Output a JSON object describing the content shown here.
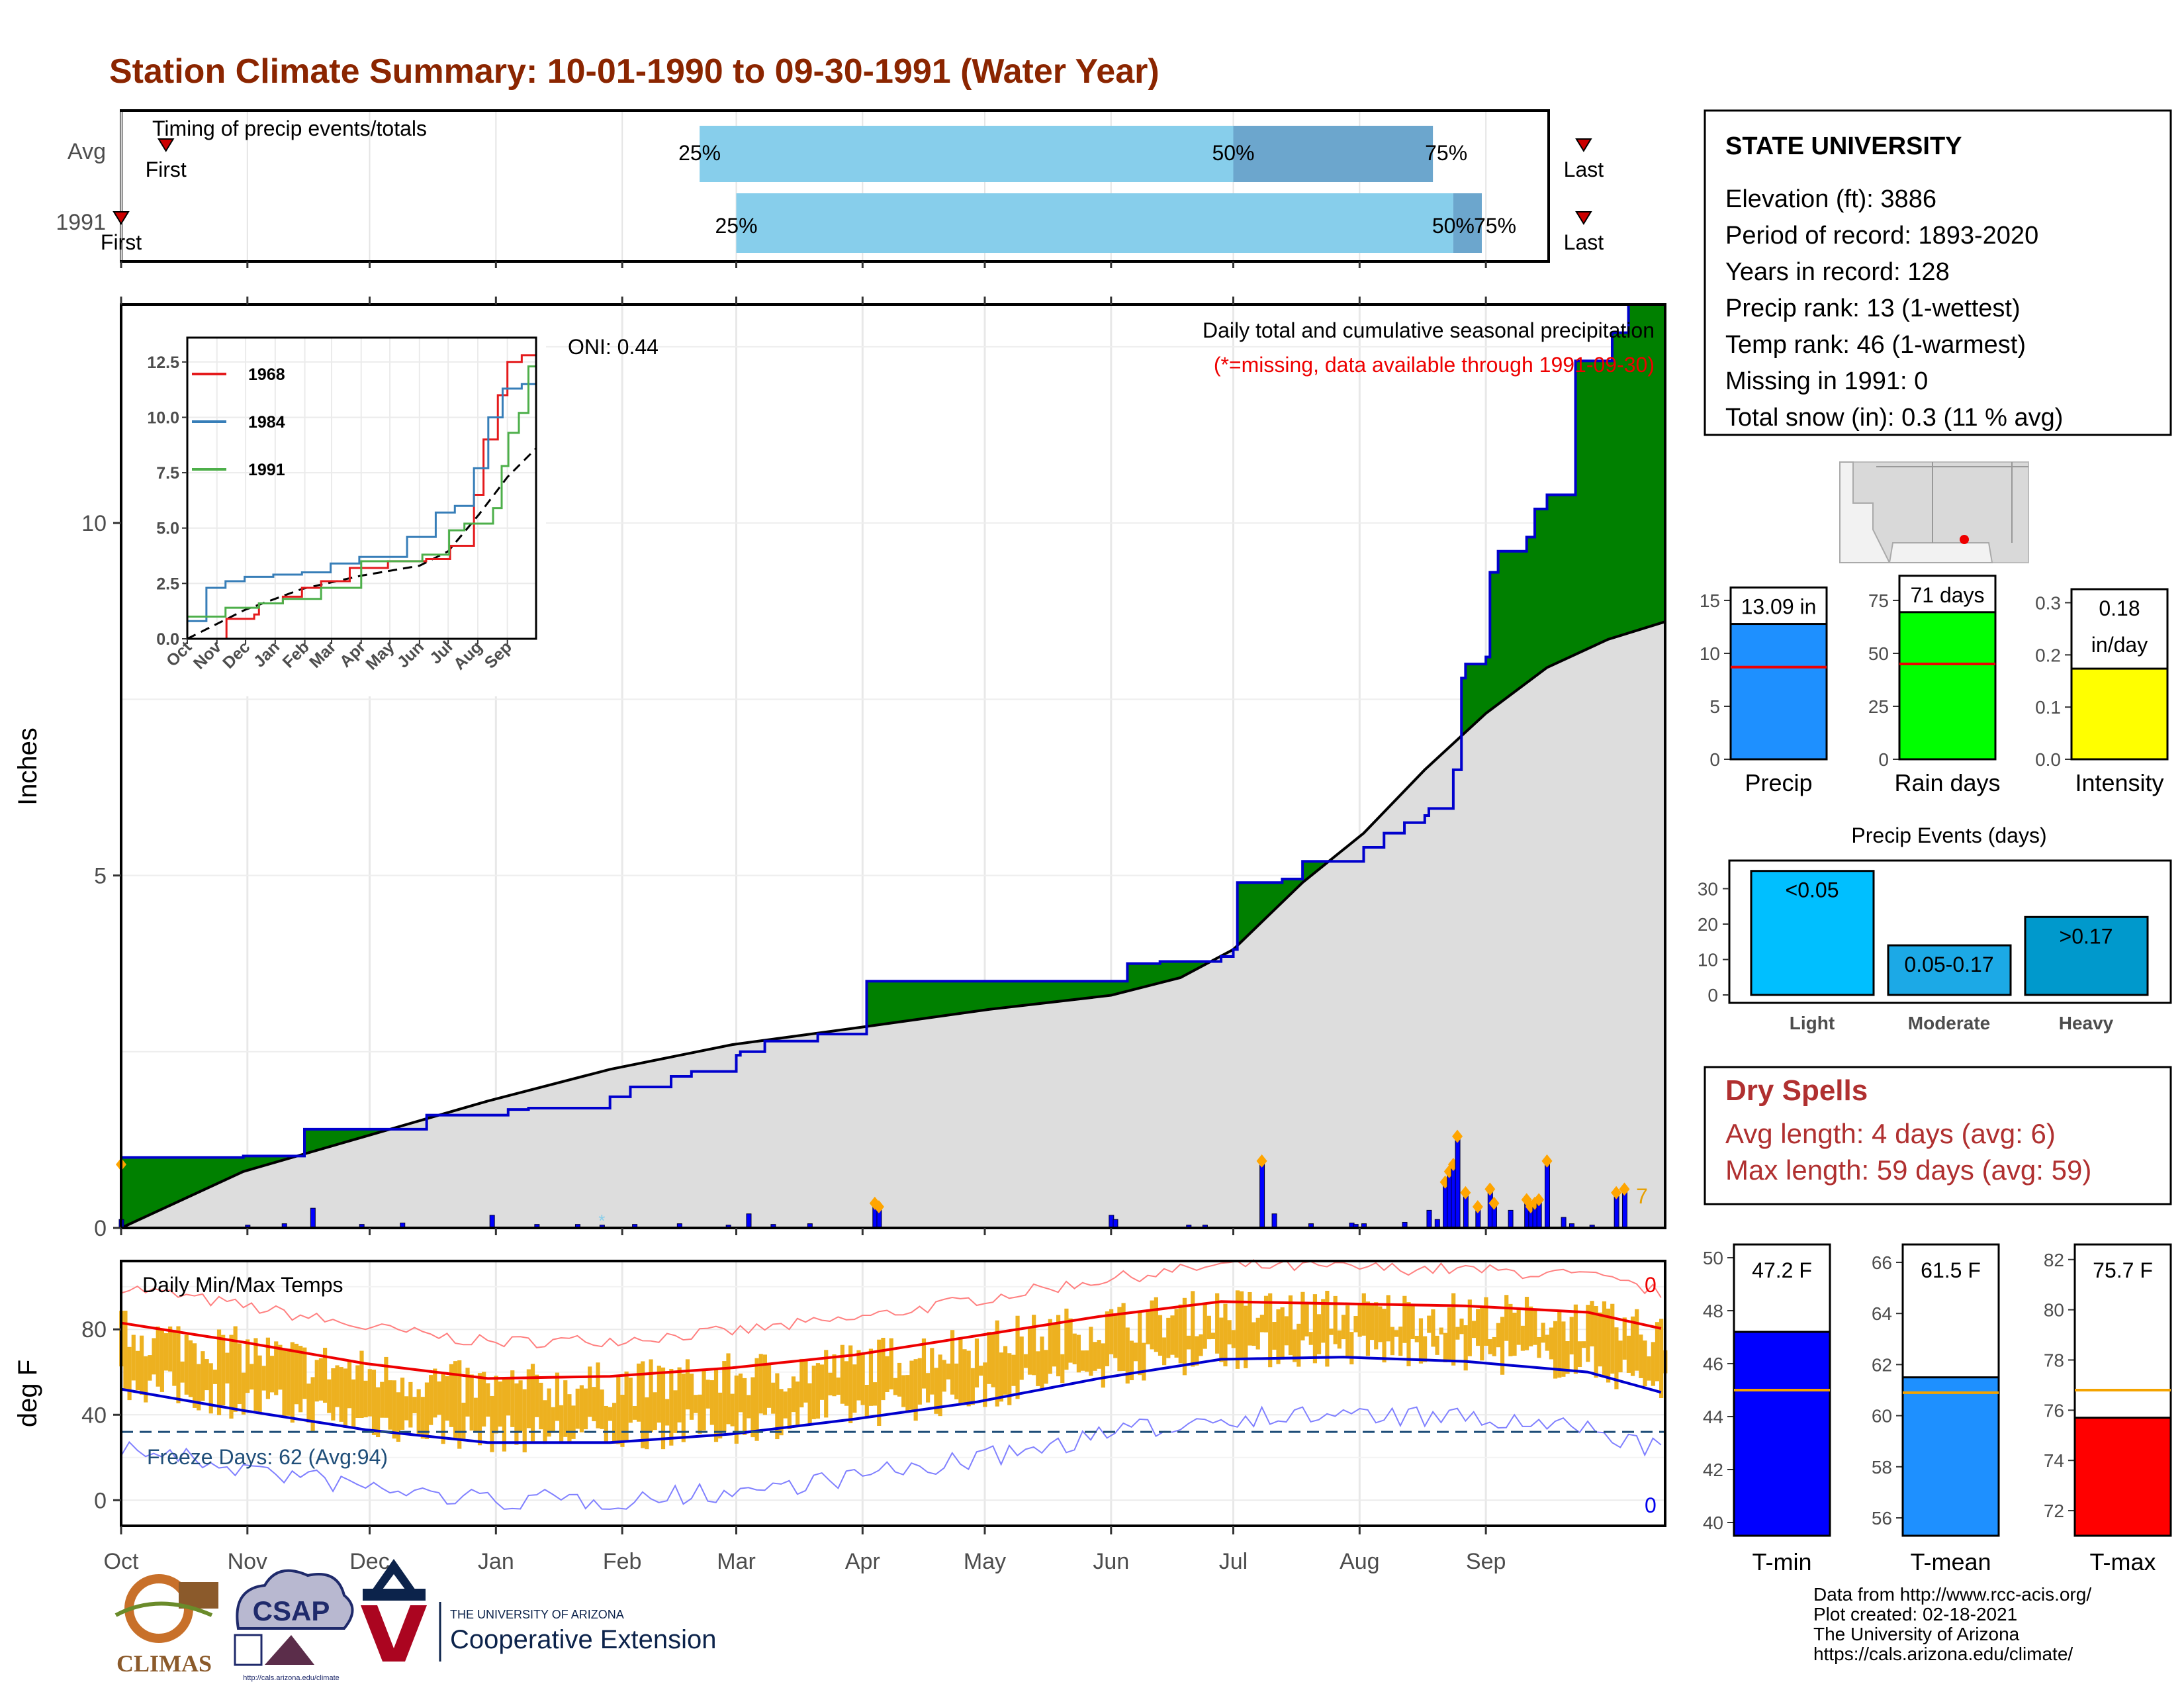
{
  "title": "Station Climate Summary: 10-01-1990 to 09-30-1991 (Water Year)",
  "colors": {
    "title": "#8B2500",
    "precip_fill": "#008000",
    "precip_line": "#0000CD",
    "climo_fill": "#DDDDDD",
    "timing_light": "#87CEEB",
    "timing_dark": "#6CA6CD",
    "temp_bar": "#EDB120",
    "tmax_line": "#EE0000",
    "tmin_line": "#0000CD",
    "dry_text": "#B03030"
  },
  "timing": {
    "label": "Timing of precip events/totals",
    "rows": [
      {
        "name": "Avg",
        "first": 11,
        "p25": 142,
        "p50": 273,
        "p75": 322,
        "last": 359
      },
      {
        "name": "1991",
        "first": 0,
        "p25": 151,
        "p50": 327,
        "p75": 334,
        "last": 359
      }
    ],
    "first_label": "First",
    "last_label": "Last",
    "p25_label": "25%",
    "p50_label": "50%",
    "p75_label": "75%"
  },
  "main": {
    "oni": "ONI: 0.44",
    "subtitle": "Daily total and cumulative seasonal precipitation",
    "missing_note": "(*=missing, data available through 1991-09-30)",
    "ylabel": "Inches",
    "yticks": [
      0,
      5,
      10
    ],
    "count_label": "7"
  },
  "inset": {
    "yticks": [
      "0.0",
      "2.5",
      "5.0",
      "7.5",
      "10.0",
      "12.5"
    ],
    "months": [
      "Oct",
      "Nov",
      "Dec",
      "Jan",
      "Feb",
      "Mar",
      "Apr",
      "May",
      "Jun",
      "Jul",
      "Aug",
      "Sep"
    ],
    "legend": [
      {
        "name": "1968",
        "color": "#E41A1C"
      },
      {
        "name": "1984",
        "color": "#377EB8"
      },
      {
        "name": "1991",
        "color": "#4DAF4A"
      }
    ]
  },
  "temps": {
    "label": "Daily Min/Max Temps",
    "ylabel": "deg F",
    "yticks": [
      0,
      40,
      80
    ],
    "freeze": "Freeze Days: 62 (Avg:94)",
    "count_top": "0",
    "count_bottom": "0"
  },
  "months": [
    "Oct",
    "Nov",
    "Dec",
    "Jan",
    "Feb",
    "Mar",
    "Apr",
    "May",
    "Jun",
    "Jul",
    "Aug",
    "Sep"
  ],
  "station": {
    "name": "STATE UNIVERSITY",
    "lines": [
      "Elevation (ft): 3886",
      "Period of record: 1893-2020",
      "Years in record: 128",
      "Precip rank: 13 (1-wettest)",
      "Temp rank: 46 (1-warmest)",
      "Missing in 1991: 0",
      "Total snow (in): 0.3 (11 % avg)"
    ]
  },
  "small_bars": [
    {
      "name": "Precip",
      "value": 13.09,
      "avg": 8.7,
      "label_lines": [
        "13.09 in"
      ],
      "yticks": [
        "0",
        "5",
        "10",
        "15"
      ],
      "ymax": 17,
      "color": "#1E90FF"
    },
    {
      "name": "Rain days",
      "value": 71,
      "avg": 45,
      "label_lines": [
        "71 days"
      ],
      "yticks": [
        "0",
        "25",
        "50",
        "75"
      ],
      "ymax": 85,
      "color": "#00FF00"
    },
    {
      "name": "Intensity",
      "value": 0.18,
      "avg": 0.19,
      "label_lines": [
        "0.18",
        "in/day"
      ],
      "yticks": [
        "0.0",
        "0.1",
        "0.2",
        "0.3"
      ],
      "ymax": 0.345,
      "color": "#FFFF00"
    }
  ],
  "events": {
    "title": "Precip Events (days)",
    "yticks": [
      "0",
      "10",
      "20",
      "30"
    ],
    "ymax": 37,
    "bars": [
      {
        "name": "Light",
        "value": 35,
        "label": "<0.05",
        "color": "#00BFFF"
      },
      {
        "name": "Moderate",
        "value": 14,
        "label": "0.05-0.17",
        "color": "#1CA9E6"
      },
      {
        "name": "Heavy",
        "value": 22,
        "label": ">0.17",
        "color": "#0099CC"
      }
    ]
  },
  "dry": {
    "title": "Dry Spells",
    "avg": "Avg length: 4 days (avg: 6)",
    "max": "Max length: 59 days (avg: 59)"
  },
  "temp_bars": [
    {
      "name": "T-min",
      "value": 47.2,
      "avg": 45.0,
      "label": "47.2 F",
      "yticks": [
        "40",
        "42",
        "44",
        "46",
        "48",
        "50"
      ],
      "ymin": 39.5,
      "ymax": 50.5,
      "color": "#0000FF"
    },
    {
      "name": "T-mean",
      "value": 61.5,
      "avg": 60.9,
      "label": "61.5 F",
      "yticks": [
        "56",
        "58",
        "60",
        "62",
        "64",
        "66"
      ],
      "ymin": 55.3,
      "ymax": 66.7,
      "color": "#1E90FF"
    },
    {
      "name": "T-max",
      "value": 75.7,
      "avg": 76.8,
      "label": "75.7 F",
      "yticks": [
        "72",
        "74",
        "76",
        "78",
        "80",
        "82"
      ],
      "ymin": 71.0,
      "ymax": 82.6,
      "color": "#FF0000"
    }
  ],
  "credits": [
    "Data from http://www.rcc-acis.org/",
    "Plot created: 02-18-2021",
    "The University of Arizona",
    "https://cals.arizona.edu/climate/"
  ],
  "logos": {
    "climas": "CLIMAS",
    "csap": "CSAP",
    "csap_url": "http://cals.arizona.edu/climate",
    "ua_small": "THE UNIVERSITY OF ARIZONA",
    "ua_big": "Cooperative Extension"
  },
  "chart_data": {
    "type": "area",
    "title": "Daily total and cumulative seasonal precipitation",
    "ylabel": "Inches",
    "ylim": [
      0,
      13.1
    ],
    "x_unit": "day of water year (0 = Oct 1)",
    "cumulative_1991": [
      [
        0,
        1.0
      ],
      [
        30,
        1.02
      ],
      [
        45,
        1.4
      ],
      [
        60,
        1.4
      ],
      [
        75,
        1.6
      ],
      [
        90,
        1.6
      ],
      [
        95,
        1.68
      ],
      [
        100,
        1.7
      ],
      [
        120,
        1.86
      ],
      [
        125,
        2.0
      ],
      [
        135,
        2.15
      ],
      [
        140,
        2.22
      ],
      [
        150,
        2.22
      ],
      [
        151,
        2.45
      ],
      [
        152,
        2.5
      ],
      [
        157,
        2.5
      ],
      [
        158,
        2.65
      ],
      [
        170,
        2.65
      ],
      [
        171,
        2.75
      ],
      [
        175,
        2.75
      ],
      [
        182,
        2.75
      ],
      [
        183,
        3.5
      ],
      [
        190,
        3.5
      ],
      [
        230,
        3.5
      ],
      [
        235,
        3.5
      ],
      [
        246,
        3.5
      ],
      [
        247,
        3.75
      ],
      [
        255,
        3.78
      ],
      [
        270,
        3.85
      ],
      [
        273,
        3.95
      ],
      [
        274,
        4.9
      ],
      [
        285,
        4.95
      ],
      [
        290,
        5.2
      ],
      [
        300,
        5.2
      ],
      [
        305,
        5.4
      ],
      [
        310,
        5.6
      ],
      [
        315,
        5.75
      ],
      [
        320,
        5.85
      ],
      [
        321,
        5.95
      ],
      [
        326,
        5.95
      ],
      [
        327,
        6.5
      ],
      [
        328,
        6.5
      ],
      [
        329,
        7.8
      ],
      [
        330,
        8.0
      ],
      [
        334,
        8.0
      ],
      [
        335,
        8.1
      ],
      [
        336,
        9.3
      ],
      [
        337,
        9.3
      ],
      [
        338,
        9.6
      ],
      [
        340,
        9.6
      ],
      [
        345,
        9.8
      ],
      [
        347,
        10.2
      ],
      [
        350,
        10.4
      ],
      [
        355,
        10.4
      ],
      [
        357,
        12.3
      ],
      [
        365,
        12.3
      ],
      [
        366,
        12.7
      ],
      [
        370,
        13.1
      ],
      [
        379,
        13.1
      ]
    ],
    "climatology_cumulative": [
      [
        0,
        0.0
      ],
      [
        30,
        0.8
      ],
      [
        60,
        1.3
      ],
      [
        90,
        1.8
      ],
      [
        120,
        2.25
      ],
      [
        150,
        2.6
      ],
      [
        182,
        2.85
      ],
      [
        213,
        3.1
      ],
      [
        243,
        3.3
      ],
      [
        260,
        3.55
      ],
      [
        273,
        3.95
      ],
      [
        290,
        4.9
      ],
      [
        305,
        5.6
      ],
      [
        320,
        6.5
      ],
      [
        335,
        7.3
      ],
      [
        350,
        7.95
      ],
      [
        365,
        8.35
      ],
      [
        379,
        8.6
      ]
    ],
    "daily_precip": [
      [
        0,
        0.12
      ],
      [
        31,
        0.04
      ],
      [
        40,
        0.06
      ],
      [
        47,
        0.28
      ],
      [
        59,
        0.05
      ],
      [
        69,
        0.07
      ],
      [
        91,
        0.18
      ],
      [
        102,
        0.05
      ],
      [
        112,
        0.05
      ],
      [
        118,
        0.04
      ],
      [
        126,
        0.05
      ],
      [
        137,
        0.06
      ],
      [
        149,
        0.04
      ],
      [
        154,
        0.2
      ],
      [
        160,
        0.05
      ],
      [
        169,
        0.06
      ],
      [
        185,
        0.35
      ],
      [
        186,
        0.3
      ],
      [
        243,
        0.18
      ],
      [
        244,
        0.12
      ],
      [
        262,
        0.04
      ],
      [
        266,
        0.04
      ],
      [
        280,
        0.95
      ],
      [
        283,
        0.2
      ],
      [
        292,
        0.06
      ],
      [
        302,
        0.07
      ],
      [
        303,
        0.05
      ],
      [
        305,
        0.06
      ],
      [
        315,
        0.08
      ],
      [
        321,
        0.25
      ],
      [
        323,
        0.12
      ],
      [
        325,
        0.65
      ],
      [
        326,
        0.8
      ],
      [
        327,
        0.9
      ],
      [
        328,
        1.3
      ],
      [
        330,
        0.5
      ],
      [
        333,
        0.3
      ],
      [
        336,
        0.55
      ],
      [
        337,
        0.35
      ],
      [
        341,
        0.25
      ],
      [
        345,
        0.4
      ],
      [
        346,
        0.3
      ],
      [
        347,
        0.35
      ],
      [
        348,
        0.4
      ],
      [
        350,
        0.95
      ],
      [
        354,
        0.15
      ],
      [
        356,
        0.06
      ],
      [
        361,
        0.04
      ],
      [
        367,
        0.5
      ],
      [
        369,
        0.55
      ]
    ],
    "temperature_1991": {
      "tmax_normal": [
        [
          0,
          83
        ],
        [
          30,
          74
        ],
        [
          60,
          64
        ],
        [
          90,
          57
        ],
        [
          120,
          58
        ],
        [
          150,
          62
        ],
        [
          180,
          68
        ],
        [
          210,
          77
        ],
        [
          240,
          86
        ],
        [
          270,
          93
        ],
        [
          300,
          92
        ],
        [
          330,
          91
        ],
        [
          360,
          88
        ],
        [
          379,
          80
        ]
      ],
      "tmin_normal": [
        [
          0,
          52
        ],
        [
          30,
          42
        ],
        [
          60,
          33
        ],
        [
          90,
          27
        ],
        [
          120,
          27
        ],
        [
          150,
          31
        ],
        [
          180,
          38
        ],
        [
          210,
          46
        ],
        [
          240,
          57
        ],
        [
          270,
          66
        ],
        [
          300,
          67
        ],
        [
          330,
          65
        ],
        [
          360,
          60
        ],
        [
          379,
          50
        ]
      ],
      "freeze_days": 62,
      "freeze_days_avg": 94
    }
  }
}
